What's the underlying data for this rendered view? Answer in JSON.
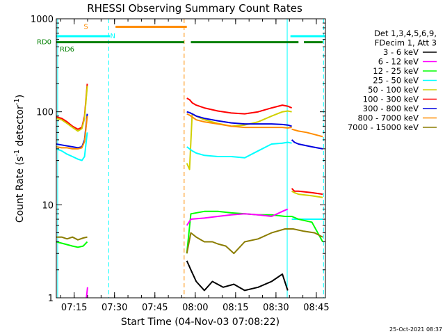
{
  "chart_data": {
    "type": "line",
    "title": "RHESSI Observing Summary Count Rates",
    "xlabel": "Start Time (04-Nov-03 07:08:22)",
    "ylabel_main": "Count Rate (s",
    "ylabel_exp1": "-1",
    "ylabel_mid": " detector",
    "ylabel_exp2": "-1",
    "ylabel_end": ")",
    "y_scale": "log",
    "ylim": [
      1,
      1000
    ],
    "xlim_minutes": [
      0,
      100
    ],
    "y_ticks": [
      {
        "label": "1",
        "value": 1
      },
      {
        "label": "10",
        "value": 10
      },
      {
        "label": "100",
        "value": 100
      },
      {
        "label": "1000",
        "value": 1000
      }
    ],
    "x_ticks": [
      {
        "label": "07:15",
        "minute": 6.63
      },
      {
        "label": "07:30",
        "minute": 21.63
      },
      {
        "label": "07:45",
        "minute": 36.63
      },
      {
        "label": "08:00",
        "minute": 51.63
      },
      {
        "label": "08:15",
        "minute": 66.63
      },
      {
        "label": "08:30",
        "minute": 81.63
      },
      {
        "label": "08:45",
        "minute": 96.63
      }
    ],
    "legend": {
      "header_lines": [
        "Det 1,3,4,5,6,9,",
        "FDecim 1, Att 3"
      ],
      "position": "top-right",
      "entries": [
        {
          "label": "3 - 6 keV",
          "color": "#000000"
        },
        {
          "label": "6 - 12 keV",
          "color": "#ff00ff"
        },
        {
          "label": "12 - 25 keV",
          "color": "#00ff00"
        },
        {
          "label": "25 - 50 keV",
          "color": "#00ffff"
        },
        {
          "label": "50 - 100 keV",
          "color": "#d0d000"
        },
        {
          "label": "100 - 300 keV",
          "color": "#ff0000"
        },
        {
          "label": "300 - 800 keV",
          "color": "#0000e0"
        },
        {
          "label": "800 - 7000 keV",
          "color": "#ff8c00"
        },
        {
          "label": "7000 - 15000 keV",
          "color": "#8b7d00"
        }
      ]
    },
    "flag_bars": [
      {
        "label": "S",
        "color": "#ff8c00",
        "segments_minutes": [
          [
            22,
            48.5
          ]
        ],
        "level": 820
      },
      {
        "label": "N",
        "color": "#00ffff",
        "segments_minutes": [
          [
            0,
            20
          ]
        ],
        "second_segments_minutes": [
          [
            87,
            100
          ]
        ],
        "level": 650
      },
      {
        "label": "RD0",
        "color": "#008000",
        "segments_minutes": [
          [
            0,
            47.5
          ],
          [
            50,
            90
          ],
          [
            92,
            99
          ]
        ],
        "level": 560
      },
      {
        "label": "RD6",
        "color": "#008000",
        "segments_minutes": [],
        "level": 470
      }
    ],
    "vertical_markers": [
      {
        "minute": 0.5,
        "color": "#00ffff",
        "style": "solid"
      },
      {
        "minute": 19.5,
        "color": "#00ffff",
        "style": "dashed"
      },
      {
        "minute": 47.5,
        "color": "#ff8c00",
        "style": "dashed"
      },
      {
        "minute": 85.8,
        "color": "#00ffff",
        "style": "solid"
      },
      {
        "minute": 99.3,
        "color": "#00ffff",
        "style": "dashed"
      }
    ],
    "series": [
      {
        "name": "100 - 300 keV",
        "color": "#ff0000",
        "segments": [
          {
            "x": [
              0,
              2,
              4,
              6,
              8,
              9.5,
              10.5,
              11.5
            ],
            "y": [
              88,
              85,
              78,
              70,
              65,
              68,
              90,
              200
            ]
          },
          {
            "x": [
              48.5,
              49.5,
              50.5,
              52,
              55,
              60,
              65,
              70,
              75,
              80,
              84,
              86,
              87.5
            ],
            "y": [
              140,
              135,
              125,
              118,
              110,
              102,
              97,
              95,
              100,
              110,
              118,
              115,
              110
            ]
          },
          {
            "x": [
              87.5,
              88.5,
              90,
              95,
              99
            ],
            "y": [
              15,
              14,
              14,
              13.5,
              13
            ]
          }
        ]
      },
      {
        "name": "50 - 100 keV",
        "color": "#d0d000",
        "segments": [
          {
            "x": [
              0,
              2,
              4,
              6,
              8,
              9.5,
              10.5,
              11.5
            ],
            "y": [
              85,
              82,
              75,
              68,
              62,
              66,
              85,
              190
            ]
          },
          {
            "x": [
              48.5,
              49.5,
              50.5,
              52,
              55,
              60,
              65,
              70,
              75,
              80,
              84,
              86,
              87.5
            ],
            "y": [
              28,
              24,
              95,
              90,
              82,
              75,
              70,
              72,
              78,
              90,
              100,
              102,
              100
            ]
          },
          {
            "x": [
              87.5,
              88.5,
              90,
              95,
              99
            ],
            "y": [
              14,
              13.5,
              13,
              12.5,
              12
            ]
          }
        ]
      },
      {
        "name": "300 - 800 keV",
        "color": "#0000e0",
        "segments": [
          {
            "x": [
              0,
              2,
              4,
              6,
              8,
              9.5,
              10.5,
              11.5
            ],
            "y": [
              45,
              44,
              43,
              42,
              41,
              42,
              50,
              95
            ]
          },
          {
            "x": [
              48.5,
              49.5,
              50.5,
              52,
              55,
              60,
              65,
              70,
              75,
              80,
              84,
              86,
              87.5
            ],
            "y": [
              100,
              98,
              95,
              90,
              85,
              80,
              76,
              74,
              74,
              74,
              73,
              72,
              70
            ]
          },
          {
            "x": [
              87.5,
              88.5,
              90,
              95,
              99
            ],
            "y": [
              50,
              47,
              45,
              42,
              40
            ]
          }
        ]
      },
      {
        "name": "800 - 7000 keV",
        "color": "#ff8c00",
        "segments": [
          {
            "x": [
              0,
              2,
              4,
              6,
              8,
              9.5,
              10.5,
              11.5
            ],
            "y": [
              42,
              41,
              41,
              40,
              40,
              41,
              48,
              90
            ]
          },
          {
            "x": [
              48.5,
              49.5,
              50.5,
              52,
              55,
              60,
              65,
              70,
              75,
              80,
              84,
              86,
              87.5
            ],
            "y": [
              95,
              92,
              88,
              82,
              78,
              74,
              70,
              68,
              68,
              68,
              68,
              67,
              68
            ]
          },
          {
            "x": [
              87.5,
              90,
              93,
              96,
              99
            ],
            "y": [
              65,
              62,
              60,
              57,
              54
            ]
          }
        ]
      },
      {
        "name": "25 - 50 keV",
        "color": "#00ffff",
        "segments": [
          {
            "x": [
              0,
              2,
              4,
              6,
              8,
              9.5,
              10.5,
              11.5
            ],
            "y": [
              40,
              38,
              35,
              33,
              31,
              30,
              33,
              60
            ]
          },
          {
            "x": [
              48.5,
              49.5,
              50.5,
              52,
              55,
              60,
              65,
              70,
              75,
              80,
              84,
              86,
              87.5
            ],
            "y": [
              42,
              40,
              38,
              36,
              34,
              33,
              33,
              32,
              38,
              45,
              46,
              47,
              46
            ]
          },
          {
            "x": [
              87.5,
              89,
              93,
              96,
              99
            ],
            "y": [
              7,
              7,
              7,
              7,
              7
            ]
          }
        ]
      },
      {
        "name": "12 - 25 keV",
        "color": "#00ff00",
        "segments": [
          {
            "x": [
              0,
              3,
              6,
              8,
              10,
              11.5
            ],
            "y": [
              4,
              3.8,
              3.6,
              3.5,
              3.6,
              4
            ]
          },
          {
            "x": [
              48.5,
              50,
              55,
              60,
              65,
              70,
              75,
              80,
              85,
              87.5,
              90,
              95,
              99
            ],
            "y": [
              3,
              8,
              8.5,
              8.5,
              8.2,
              8,
              7.8,
              7.8,
              7.5,
              7.5,
              7,
              6.5,
              4
            ]
          }
        ]
      },
      {
        "name": "6 - 12 keV",
        "color": "#ff00ff",
        "segments": [
          {
            "x": [
              11.2,
              11.6
            ],
            "y": [
              1,
              1.3
            ]
          },
          {
            "x": [
              48.5,
              50,
              55,
              60,
              65,
              70,
              75,
              80,
              84,
              86
            ],
            "y": [
              6,
              7,
              7.2,
              7.5,
              7.8,
              8,
              7.8,
              7.5,
              8.5,
              9
            ]
          }
        ]
      },
      {
        "name": "7000 - 15000 keV",
        "color": "#8b7d00",
        "segments": [
          {
            "x": [
              0,
              2,
              4,
              6,
              8,
              10,
              11.5
            ],
            "y": [
              4.5,
              4.5,
              4.3,
              4.5,
              4.2,
              4.4,
              4.5
            ]
          },
          {
            "x": [
              48.5,
              50,
              52,
              55,
              58,
              60,
              63,
              66,
              70,
              75,
              80,
              85,
              88,
              92,
              96,
              99
            ],
            "y": [
              3,
              5,
              4.5,
              4,
              4,
              3.8,
              3.6,
              3,
              4,
              4.3,
              5,
              5.5,
              5.5,
              5.2,
              5,
              4.5
            ]
          }
        ]
      },
      {
        "name": "3 - 6 keV",
        "color": "#000000",
        "segments": [
          {
            "x": [
              48.5,
              50,
              52,
              55,
              58,
              62,
              66,
              70,
              75,
              80,
              84,
              86
            ],
            "y": [
              2.5,
              2,
              1.5,
              1.2,
              1.5,
              1.3,
              1.4,
              1.2,
              1.3,
              1.5,
              1.8,
              1.2
            ]
          }
        ]
      }
    ]
  },
  "timestamp": "25-Oct-2021 08:37"
}
